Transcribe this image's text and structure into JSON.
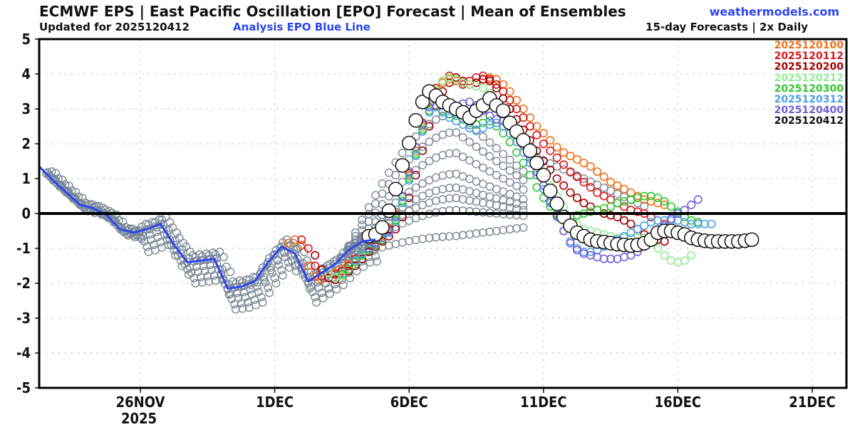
{
  "header": {
    "title": "ECMWF EPS | East Pacific Oscillation [EPO] Forecast | Mean of Ensembles",
    "updated": "Updated for 2025120412",
    "analysis_note": "Analysis EPO Blue Line",
    "site": "weathermodels.com",
    "frequency": "15-day Forecasts | 2x Daily"
  },
  "chart_data": {
    "type": "scatter",
    "title": "ECMWF EPS | East Pacific Oscillation [EPO] Forecast | Mean of Ensembles",
    "xlabel": "",
    "ylabel": "",
    "x_unit": "days since 26NOV2025",
    "xlim": [
      -3.77,
      26.3
    ],
    "ylim": [
      -5,
      5
    ],
    "yticks": [
      "5",
      "4",
      "3",
      "2",
      "1",
      "0",
      "-1",
      "-2",
      "-3",
      "-4",
      "-5"
    ],
    "xticks": [
      {
        "day": 0,
        "label": "26NOV",
        "sublabel": "2025"
      },
      {
        "day": 5,
        "label": "1DEC",
        "sublabel": ""
      },
      {
        "day": 10,
        "label": "6DEC",
        "sublabel": ""
      },
      {
        "day": 15,
        "label": "11DEC",
        "sublabel": ""
      },
      {
        "day": 20,
        "label": "16DEC",
        "sublabel": ""
      },
      {
        "day": 25,
        "label": "21DEC",
        "sublabel": ""
      }
    ],
    "grid": true,
    "zero_line": true,
    "legend_position": "top-right",
    "analysis": {
      "name": "Analysis EPO",
      "color": "#2e45f0",
      "x": [
        -3.77,
        -3.25,
        -2.75,
        -2.25,
        -1.75,
        -1.25,
        -0.75,
        -0.25,
        0.25,
        0.75,
        1.25,
        1.75,
        2.25,
        2.75,
        3.25,
        3.75,
        4.25,
        4.75,
        5.25,
        5.75,
        6.25,
        6.75,
        7.25,
        7.75,
        8.25,
        8.75
      ],
      "y": [
        1.35,
        0.95,
        0.6,
        0.25,
        0.15,
        -0.05,
        -0.45,
        -0.55,
        -0.45,
        -0.3,
        -0.9,
        -1.4,
        -1.35,
        -1.3,
        -2.15,
        -2.1,
        -1.95,
        -1.4,
        -0.95,
        -1.15,
        -1.95,
        -1.7,
        -1.45,
        -1.05,
        -0.8,
        -0.75
      ]
    },
    "series": [
      {
        "name": "2025120100",
        "color": "#f07018",
        "start": 5.5,
        "step": 0.25,
        "y": [
          -0.85,
          -0.75,
          -0.9,
          -1.5,
          -1.8,
          -1.9,
          -1.85,
          -1.7,
          -1.6,
          -1.45,
          -1.3,
          -1.15,
          -1.0,
          -0.85,
          -0.65,
          -0.4,
          0.0,
          0.5,
          1.1,
          1.8,
          2.5,
          3.1,
          3.5,
          3.75,
          3.85,
          3.8,
          3.75,
          3.7,
          3.75,
          3.85,
          3.9,
          3.85,
          3.7,
          3.5,
          3.25,
          3.0,
          2.75,
          2.5,
          2.3,
          2.1,
          1.9,
          1.75,
          1.65,
          1.55,
          1.45,
          1.35,
          1.2,
          1.05,
          0.9,
          0.8,
          0.7,
          0.6,
          0.5,
          0.4,
          0.35,
          0.3,
          0.25
        ]
      },
      {
        "name": "2025120112",
        "color": "#d81818",
        "start": 6.0,
        "step": 0.25,
        "y": [
          -0.75,
          -1.0,
          -1.5,
          -1.8,
          -1.85,
          -1.75,
          -1.65,
          -1.5,
          -1.3,
          -1.15,
          -1.0,
          -0.85,
          -0.7,
          -0.45,
          -0.05,
          0.5,
          1.15,
          1.9,
          2.6,
          3.2,
          3.6,
          3.8,
          3.95,
          3.85,
          3.7,
          3.8,
          3.9,
          3.95,
          3.85,
          3.7,
          3.5,
          3.25,
          3.0,
          2.75,
          2.5,
          2.25,
          2.0,
          1.8,
          1.6,
          1.4,
          1.2,
          1.05,
          0.9,
          0.75,
          0.6,
          0.5,
          0.4,
          0.3,
          0.2,
          0.1,
          0.05,
          0.0,
          -0.1,
          -0.2,
          -0.3,
          -0.45,
          -0.55
        ]
      },
      {
        "name": "2025120200",
        "color": "#a00000",
        "start": 6.5,
        "step": 0.25,
        "y": [
          -1.2,
          -1.6,
          -1.85,
          -1.9,
          -1.8,
          -1.65,
          -1.5,
          -1.3,
          -1.1,
          -0.95,
          -0.8,
          -0.65,
          -0.45,
          -0.1,
          0.45,
          1.1,
          1.8,
          2.5,
          3.1,
          3.5,
          3.75,
          3.9,
          3.8,
          3.7,
          3.75,
          3.85,
          3.8,
          3.6,
          3.3,
          3.0,
          2.7,
          2.4,
          2.1,
          1.8,
          1.5,
          1.25,
          1.0,
          0.8,
          0.6,
          0.45,
          0.3,
          0.2,
          0.1,
          0.0,
          -0.05,
          -0.1,
          -0.2,
          -0.3,
          -0.45,
          -0.6,
          -0.7,
          -0.75,
          -0.8
        ]
      },
      {
        "name": "2025120212",
        "color": "#90ee90",
        "start": 7.0,
        "step": 0.25,
        "y": [
          -1.7,
          -1.85,
          -1.8,
          -1.6,
          -1.4,
          -1.2,
          -1.0,
          -0.85,
          -0.7,
          -0.5,
          -0.15,
          0.4,
          1.05,
          1.75,
          2.45,
          3.1,
          3.55,
          3.8,
          3.9,
          3.85,
          3.75,
          3.7,
          3.65,
          3.6,
          3.45,
          3.2,
          2.9,
          2.6,
          2.3,
          2.0,
          1.7,
          1.4,
          1.1,
          0.8,
          0.5,
          0.2,
          -0.1,
          -0.3,
          -0.45,
          -0.5,
          -0.55,
          -0.6,
          -0.65,
          -0.7,
          -0.7,
          -0.7,
          -0.7,
          -0.7,
          -0.8,
          -1.0,
          -1.2,
          -1.35,
          -1.4,
          -1.35,
          -1.2
        ]
      },
      {
        "name": "2025120300",
        "color": "#2ec82e",
        "start": 7.5,
        "step": 0.25,
        "y": [
          -1.75,
          -1.6,
          -1.4,
          -1.2,
          -1.05,
          -0.9,
          -0.75,
          -0.55,
          -0.2,
          0.35,
          1.0,
          1.7,
          2.4,
          2.95,
          3.05,
          2.95,
          2.85,
          2.8,
          2.7,
          2.6,
          2.55,
          2.6,
          2.65,
          2.5,
          2.3,
          2.05,
          1.75,
          1.45,
          1.1,
          0.75,
          0.45,
          0.2,
          0.0,
          -0.1,
          -0.1,
          -0.05,
          0.0,
          0.05,
          0.1,
          0.15,
          0.2,
          0.3,
          0.35,
          0.4,
          0.45,
          0.5,
          0.5,
          0.45,
          0.35,
          0.2,
          0.05,
          -0.1,
          -0.2,
          -0.25
        ]
      },
      {
        "name": "2025120312",
        "color": "#4aa0e8",
        "start": 8.0,
        "step": 0.25,
        "y": [
          -1.35,
          -1.15,
          -1.0,
          -0.85,
          -0.7,
          -0.55,
          -0.25,
          0.3,
          0.95,
          1.65,
          2.35,
          2.9,
          3.05,
          2.9,
          2.75,
          2.65,
          2.55,
          2.45,
          2.4,
          2.45,
          2.55,
          2.6,
          2.5,
          2.3,
          2.05,
          1.75,
          1.45,
          1.1,
          0.7,
          0.3,
          -0.1,
          -0.5,
          -0.8,
          -1.0,
          -1.1,
          -1.1,
          -1.05,
          -0.95,
          -0.85,
          -0.75,
          -0.65,
          -0.55,
          -0.45,
          -0.35,
          -0.25,
          -0.2,
          -0.2,
          -0.2,
          -0.2,
          -0.25,
          -0.3,
          -0.3,
          -0.3,
          -0.3
        ]
      },
      {
        "name": "2025120400",
        "color": "#7060d8",
        "start": 8.5,
        "step": 0.25,
        "y": [
          -1.0,
          -0.85,
          -0.7,
          -0.5,
          -0.1,
          0.5,
          1.2,
          1.9,
          2.55,
          3.05,
          3.3,
          3.25,
          3.1,
          3.05,
          3.15,
          3.2,
          3.1,
          2.95,
          2.8,
          2.7,
          2.65,
          2.5,
          2.25,
          1.95,
          1.6,
          1.2,
          0.8,
          0.35,
          -0.05,
          -0.5,
          -0.85,
          -1.05,
          -1.15,
          -1.2,
          -1.25,
          -1.3,
          -1.3,
          -1.3,
          -1.25,
          -1.2,
          -1.1,
          -0.95,
          -0.75,
          -0.55,
          -0.35,
          -0.15,
          0.0,
          0.1,
          0.25,
          0.4
        ]
      },
      {
        "name": "2025120412",
        "color": "#111111",
        "start": 8.5,
        "step": 0.25,
        "y": [
          -0.65,
          -0.6,
          -0.4,
          0.08,
          0.7,
          1.38,
          2.02,
          2.67,
          3.2,
          3.5,
          3.38,
          3.2,
          3.1,
          3.0,
          2.9,
          2.75,
          2.95,
          3.1,
          3.3,
          3.1,
          2.95,
          2.6,
          2.35,
          2.1,
          1.8,
          1.45,
          1.1,
          0.65,
          0.28,
          -0.1,
          -0.35,
          -0.55,
          -0.65,
          -0.75,
          -0.8,
          -0.82,
          -0.85,
          -0.88,
          -0.9,
          -0.92,
          -0.9,
          -0.85,
          -0.75,
          -0.55,
          -0.5,
          -0.5,
          -0.55,
          -0.6,
          -0.7,
          -0.75,
          -0.78,
          -0.8,
          -0.8,
          -0.8,
          -0.8,
          -0.8,
          -0.78,
          -0.75
        ]
      }
    ],
    "older_members_color": "#7a8896",
    "older_members_note": "gray circles: earlier ensemble-mean runs"
  }
}
